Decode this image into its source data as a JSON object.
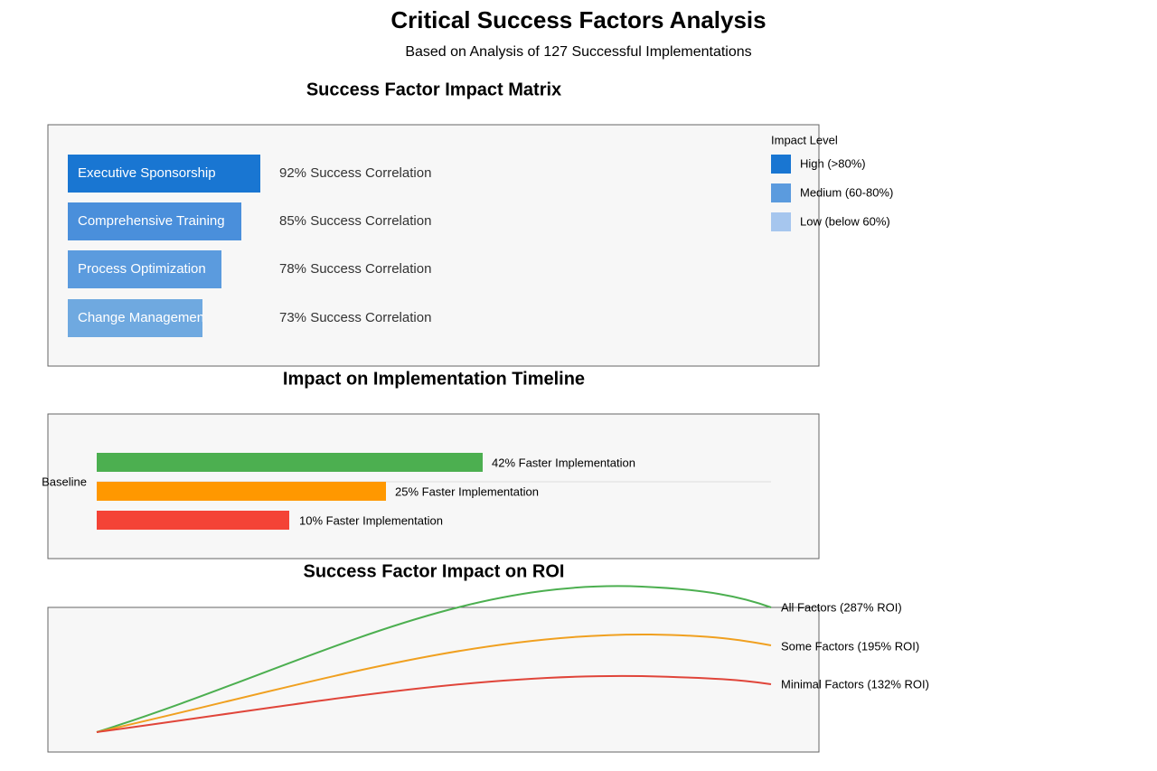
{
  "header": {
    "title": "Critical Success Factors Analysis",
    "subtitle": "Based on Analysis of 127 Successful Implementations"
  },
  "impact_matrix": {
    "title": "Success Factor Impact Matrix",
    "factors": [
      {
        "label": "Executive Sponsorship",
        "correlation": "92% Success Correlation"
      },
      {
        "label": "Comprehensive Training",
        "correlation": "85% Success Correlation"
      },
      {
        "label": "Process Optimization",
        "correlation": "78% Success Correlation"
      },
      {
        "label": "Change Management",
        "correlation": "73% Success Correlation"
      }
    ],
    "legend": {
      "title": "Impact Level",
      "items": [
        "High (>80%)",
        "Medium (60-80%)",
        "Low (below 60%)"
      ]
    }
  },
  "timeline": {
    "title": "Impact on Implementation Timeline",
    "baseline_label": "Baseline",
    "bars": [
      "42% Faster Implementation",
      "25% Faster Implementation",
      "10% Faster Implementation"
    ]
  },
  "roi": {
    "title": "Success Factor Impact on ROI",
    "lines": [
      "All Factors (287% ROI)",
      "Some Factors (195% ROI)",
      "Minimal Factors (132% ROI)"
    ]
  }
}
